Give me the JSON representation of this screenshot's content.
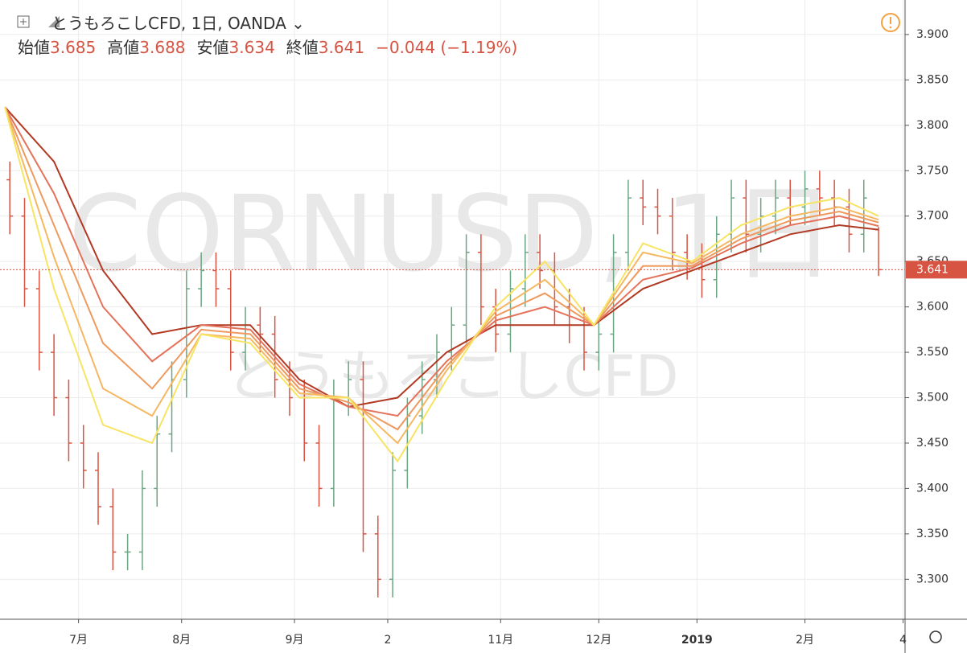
{
  "chart_data": {
    "type": "ohlc",
    "title": "とうもろこしCFD, 1日, OANDA",
    "legend_values": [
      {
        "label": "始値",
        "value": 3.685
      },
      {
        "label": "高値",
        "value": 3.688
      },
      {
        "label": "安値",
        "value": 3.634
      },
      {
        "label": "終値",
        "value": 3.641
      }
    ],
    "change": "−0.044 (−1.19%)",
    "watermark": "CORNUSD, 1日",
    "watermark_sub": "とうもろこしCFD",
    "x": [
      -14,
      -11,
      -8,
      -5,
      -2,
      1,
      4,
      7,
      10,
      13,
      16,
      19,
      22,
      25,
      28,
      31,
      34,
      37,
      40,
      43,
      46,
      49,
      52,
      55,
      58,
      61,
      64,
      67,
      70,
      73,
      76,
      79,
      82,
      85,
      88,
      91,
      94,
      97,
      100,
      103,
      106,
      109,
      112,
      115,
      118,
      121,
      124,
      127,
      130,
      133,
      136,
      139,
      142,
      145,
      148,
      151,
      154,
      157,
      160,
      163
    ],
    "open": [
      3.74,
      3.7,
      3.62,
      3.55,
      3.5,
      3.45,
      3.42,
      3.38,
      3.33,
      3.33,
      3.4,
      3.46,
      3.52,
      3.62,
      3.64,
      3.62,
      3.55,
      3.58,
      3.57,
      3.52,
      3.5,
      3.45,
      3.4,
      3.5,
      3.52,
      3.35,
      3.3,
      3.42,
      3.48,
      3.52,
      3.55,
      3.58,
      3.66,
      3.6,
      3.57,
      3.62,
      3.66,
      3.64,
      3.6,
      3.58,
      3.55,
      3.57,
      3.66,
      3.72,
      3.71,
      3.7,
      3.66,
      3.65,
      3.63,
      3.68,
      3.72,
      3.68,
      3.7,
      3.72,
      3.71,
      3.73,
      3.72,
      3.71,
      3.68,
      3.685
    ],
    "high": [
      3.76,
      3.72,
      3.64,
      3.57,
      3.52,
      3.47,
      3.44,
      3.4,
      3.35,
      3.42,
      3.48,
      3.54,
      3.64,
      3.66,
      3.66,
      3.64,
      3.6,
      3.6,
      3.59,
      3.54,
      3.52,
      3.47,
      3.52,
      3.54,
      3.54,
      3.37,
      3.44,
      3.5,
      3.54,
      3.57,
      3.6,
      3.68,
      3.68,
      3.62,
      3.64,
      3.68,
      3.68,
      3.66,
      3.62,
      3.6,
      3.59,
      3.68,
      3.74,
      3.74,
      3.73,
      3.72,
      3.68,
      3.67,
      3.7,
      3.74,
      3.74,
      3.72,
      3.74,
      3.74,
      3.75,
      3.75,
      3.74,
      3.73,
      3.74,
      3.688
    ],
    "low": [
      3.68,
      3.6,
      3.53,
      3.48,
      3.43,
      3.4,
      3.36,
      3.31,
      3.31,
      3.31,
      3.38,
      3.44,
      3.5,
      3.6,
      3.6,
      3.53,
      3.53,
      3.55,
      3.5,
      3.48,
      3.43,
      3.38,
      3.38,
      3.48,
      3.33,
      3.28,
      3.28,
      3.4,
      3.46,
      3.5,
      3.53,
      3.56,
      3.58,
      3.55,
      3.55,
      3.6,
      3.62,
      3.58,
      3.56,
      3.53,
      3.53,
      3.55,
      3.64,
      3.69,
      3.68,
      3.64,
      3.63,
      3.61,
      3.61,
      3.66,
      3.66,
      3.66,
      3.68,
      3.69,
      3.69,
      3.7,
      3.69,
      3.66,
      3.66,
      3.634
    ],
    "close": [
      3.7,
      3.62,
      3.55,
      3.5,
      3.45,
      3.42,
      3.38,
      3.33,
      3.33,
      3.4,
      3.46,
      3.52,
      3.62,
      3.64,
      3.62,
      3.55,
      3.58,
      3.57,
      3.52,
      3.5,
      3.45,
      3.4,
      3.5,
      3.52,
      3.35,
      3.3,
      3.42,
      3.48,
      3.52,
      3.55,
      3.58,
      3.66,
      3.6,
      3.57,
      3.62,
      3.66,
      3.64,
      3.6,
      3.58,
      3.55,
      3.57,
      3.66,
      3.72,
      3.71,
      3.7,
      3.66,
      3.65,
      3.63,
      3.68,
      3.72,
      3.68,
      3.7,
      3.72,
      3.71,
      3.73,
      3.72,
      3.71,
      3.68,
      3.72,
      3.641
    ],
    "up_color": "#6ba583",
    "down_color": "#d75442",
    "moving_averages": {
      "x": [
        -15,
        -5,
        5,
        15,
        25,
        35,
        45,
        55,
        65,
        75,
        85,
        95,
        105,
        115,
        125,
        135,
        145,
        155,
        163
      ],
      "series": [
        {
          "color": "#b23a24",
          "values": [
            3.82,
            3.76,
            3.64,
            3.57,
            3.58,
            3.58,
            3.52,
            3.49,
            3.5,
            3.55,
            3.58,
            3.58,
            3.58,
            3.62,
            3.64,
            3.66,
            3.68,
            3.69,
            3.685
          ]
        },
        {
          "color": "#e5725a",
          "values": [
            3.82,
            3.725,
            3.6,
            3.54,
            3.58,
            3.575,
            3.515,
            3.49,
            3.48,
            3.54,
            3.585,
            3.6,
            3.58,
            3.63,
            3.643,
            3.67,
            3.69,
            3.7,
            3.689
          ]
        },
        {
          "color": "#ee9a5e",
          "values": [
            3.82,
            3.69,
            3.56,
            3.51,
            3.575,
            3.57,
            3.51,
            3.495,
            3.465,
            3.535,
            3.59,
            3.615,
            3.58,
            3.645,
            3.645,
            3.675,
            3.695,
            3.705,
            3.693
          ]
        },
        {
          "color": "#f5b860",
          "values": [
            3.82,
            3.655,
            3.51,
            3.48,
            3.57,
            3.565,
            3.505,
            3.5,
            3.45,
            3.53,
            3.595,
            3.63,
            3.58,
            3.66,
            3.648,
            3.68,
            3.7,
            3.71,
            3.696
          ]
        },
        {
          "color": "#f7e463",
          "values": [
            3.82,
            3.62,
            3.47,
            3.45,
            3.57,
            3.56,
            3.5,
            3.5,
            3.43,
            3.52,
            3.6,
            3.65,
            3.58,
            3.67,
            3.65,
            3.69,
            3.71,
            3.72,
            3.7
          ]
        }
      ]
    },
    "xlim": [
      -16,
      168.4
    ],
    "xticks": [
      {
        "value": 0,
        "label": "7月"
      },
      {
        "value": 21,
        "label": "8月"
      },
      {
        "value": 44,
        "label": "9月"
      },
      {
        "value": 63,
        "label": "2"
      },
      {
        "value": 86,
        "label": "11月"
      },
      {
        "value": 106,
        "label": "12月"
      },
      {
        "value": 126,
        "label": "2019"
      },
      {
        "value": 148,
        "label": "2月"
      },
      {
        "value": 168,
        "label": "4"
      }
    ],
    "ylim": [
      3.256,
      3.938
    ],
    "yticks": [
      {
        "value": 3.3,
        "label": "3.300"
      },
      {
        "value": 3.35,
        "label": "3.350"
      },
      {
        "value": 3.4,
        "label": "3.400"
      },
      {
        "value": 3.45,
        "label": "3.450"
      },
      {
        "value": 3.5,
        "label": "3.500"
      },
      {
        "value": 3.55,
        "label": "3.550"
      },
      {
        "value": 3.6,
        "label": "3.600"
      },
      {
        "value": 3.65,
        "label": "3.650"
      },
      {
        "value": 3.7,
        "label": "3.700"
      },
      {
        "value": 3.75,
        "label": "3.750"
      },
      {
        "value": 3.8,
        "label": "3.800"
      },
      {
        "value": 3.85,
        "label": "3.850"
      },
      {
        "value": 3.9,
        "label": "3.900"
      }
    ],
    "grid": true,
    "last_price": 3.641,
    "last_price_color": "#d75442"
  }
}
